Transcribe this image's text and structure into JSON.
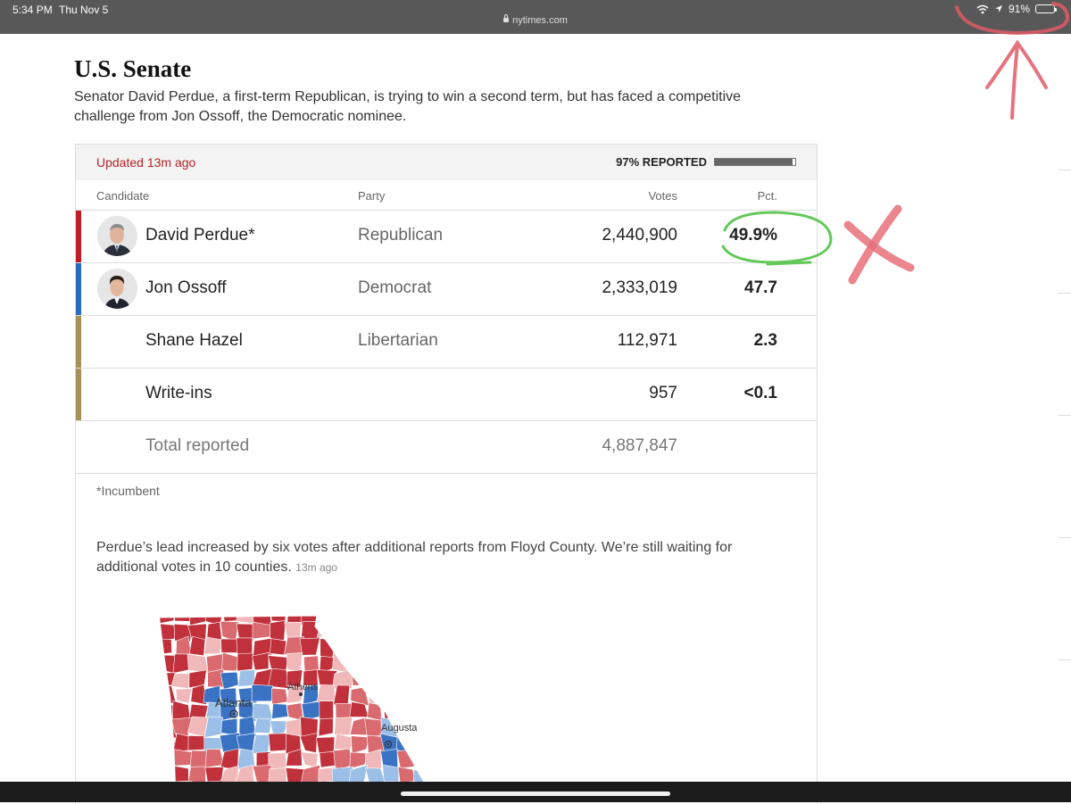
{
  "status_bar": {
    "time": "5:34 PM",
    "date": "Thu Nov 5",
    "url": "nytimes.com",
    "battery": "91%",
    "battery_level": 0.91
  },
  "header": {
    "title": "U.S. Senate",
    "subtitle": "Senator David Perdue, a first-term Republican, is trying to win a second term, but has faced a competitive challenge from Jon Ossoff, the Democratic nominee."
  },
  "results": {
    "updated": "Updated 13m ago",
    "reported_label": "97% REPORTED",
    "reported_fraction": 0.97,
    "columns": {
      "candidate": "Candidate",
      "party": "Party",
      "votes": "Votes",
      "pct": "Pct."
    },
    "rows": [
      {
        "name": "David Perdue*",
        "party": "Republican",
        "votes": "2,440,900",
        "pct": "49.9%",
        "color": "#bf1d29"
      },
      {
        "name": "Jon Ossoff",
        "party": "Democrat",
        "votes": "2,333,019",
        "pct": "47.7",
        "color": "#2a6ebb"
      },
      {
        "name": "Shane Hazel",
        "party": "Libertarian",
        "votes": "112,971",
        "pct": "2.3",
        "color": "#a6915a"
      },
      {
        "name": "Write-ins",
        "party": "",
        "votes": "957",
        "pct": "<0.1",
        "color": "#a6915a"
      }
    ],
    "total": {
      "label": "Total reported",
      "votes": "4,887,847"
    },
    "footnote": "*Incumbent"
  },
  "note": {
    "text": "Perdue’s lead increased by six votes after additional reports from Floyd County. We’re still waiting for additional votes in 10 counties.",
    "timestamp": "13m ago"
  },
  "map": {
    "cities": {
      "atlanta": "Atlanta",
      "athens": "Athens",
      "augusta": "Augusta"
    },
    "colors": {
      "red_dark": "#c0313b",
      "red_mid": "#d96a6f",
      "red_light": "#f0b8b8",
      "blue_dark": "#3a73c4",
      "blue_light": "#9bbfe6"
    }
  }
}
